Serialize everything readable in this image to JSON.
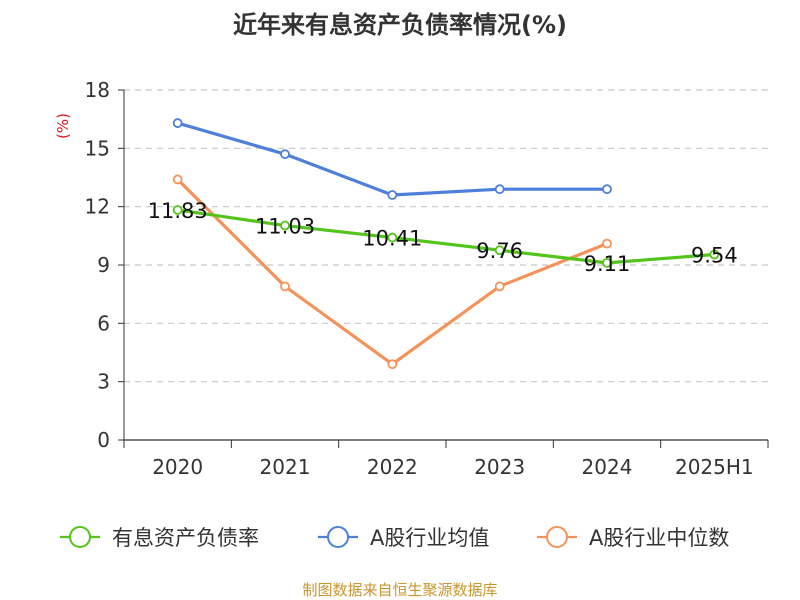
{
  "chart_data": {
    "type": "line",
    "title": "近年来有息资产负债率情况(%)",
    "ylabel": "(%)",
    "xlabel": "",
    "ylim": [
      0,
      18
    ],
    "yticks": [
      0,
      3,
      6,
      9,
      12,
      15,
      18
    ],
    "grid": true,
    "categories": [
      "2020",
      "2021",
      "2022",
      "2023",
      "2024",
      "2025H1"
    ],
    "series": [
      {
        "name": "有息资产负债率",
        "color": "#52c41a",
        "values": [
          11.83,
          11.03,
          10.41,
          9.76,
          9.11,
          9.54
        ],
        "labels": [
          "11.83",
          "11.03",
          "10.41",
          "9.76",
          "9.11",
          "9.54"
        ]
      },
      {
        "name": "A股行业均值",
        "color": "#4e7fda",
        "values": [
          16.3,
          14.7,
          12.6,
          12.9,
          12.9,
          null
        ]
      },
      {
        "name": "A股行业中位数",
        "color": "#f5925a",
        "values": [
          13.4,
          7.9,
          3.9,
          7.9,
          10.1,
          null
        ]
      }
    ],
    "legend_position": "bottom-center"
  },
  "source": "制图数据来自恒生聚源数据库",
  "colors": {
    "axis": "#333333",
    "grid": "#c8c8c8",
    "ylabel": "#e0191a",
    "source": "#c8962e"
  }
}
